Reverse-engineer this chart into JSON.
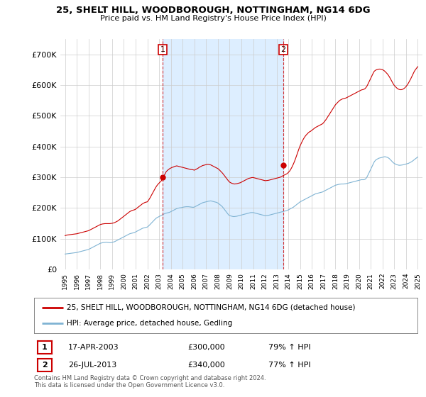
{
  "title": "25, SHELT HILL, WOODBOROUGH, NOTTINGHAM, NG14 6DG",
  "subtitle": "Price paid vs. HM Land Registry's House Price Index (HPI)",
  "legend_line1": "25, SHELT HILL, WOODBOROUGH, NOTTINGHAM, NG14 6DG (detached house)",
  "legend_line2": "HPI: Average price, detached house, Gedling",
  "transaction1_date": "17-APR-2003",
  "transaction1_price": "£300,000",
  "transaction1_hpi": "79% ↑ HPI",
  "transaction2_date": "26-JUL-2013",
  "transaction2_price": "£340,000",
  "transaction2_hpi": "77% ↑ HPI",
  "footnote": "Contains HM Land Registry data © Crown copyright and database right 2024.\nThis data is licensed under the Open Government Licence v3.0.",
  "ylabel_ticks": [
    0,
    100000,
    200000,
    300000,
    400000,
    500000,
    600000,
    700000
  ],
  "ylabel_labels": [
    "£0",
    "£100K",
    "£200K",
    "£300K",
    "£400K",
    "£500K",
    "£600K",
    "£700K"
  ],
  "ylim": [
    0,
    750000
  ],
  "red_line_color": "#cc0000",
  "blue_line_color": "#7fb3d3",
  "vline_color": "#cc0000",
  "shade_color": "#ddeeff",
  "background_color": "#ffffff",
  "grid_color": "#cccccc",
  "transaction1_x": 2003.29,
  "transaction2_x": 2013.57,
  "transaction1_y": 300000,
  "transaction2_y": 340000,
  "xmin": 1994.6,
  "xmax": 2025.4,
  "hpi_years": [
    1995.0,
    1995.1,
    1995.2,
    1995.3,
    1995.4,
    1995.5,
    1995.6,
    1995.7,
    1995.8,
    1995.9,
    1996.0,
    1996.1,
    1996.2,
    1996.3,
    1996.4,
    1996.5,
    1996.6,
    1996.7,
    1996.8,
    1996.9,
    1997.0,
    1997.1,
    1997.2,
    1997.3,
    1997.4,
    1997.5,
    1997.6,
    1997.7,
    1997.8,
    1997.9,
    1998.0,
    1998.1,
    1998.2,
    1998.3,
    1998.4,
    1998.5,
    1998.6,
    1998.7,
    1998.8,
    1998.9,
    1999.0,
    1999.1,
    1999.2,
    1999.3,
    1999.4,
    1999.5,
    1999.6,
    1999.7,
    1999.8,
    1999.9,
    2000.0,
    2000.1,
    2000.2,
    2000.3,
    2000.4,
    2000.5,
    2000.6,
    2000.7,
    2000.8,
    2000.9,
    2001.0,
    2001.1,
    2001.2,
    2001.3,
    2001.4,
    2001.5,
    2001.6,
    2001.7,
    2001.8,
    2001.9,
    2002.0,
    2002.1,
    2002.2,
    2002.3,
    2002.4,
    2002.5,
    2002.6,
    2002.7,
    2002.8,
    2002.9,
    2003.0,
    2003.1,
    2003.2,
    2003.3,
    2003.4,
    2003.5,
    2003.6,
    2003.7,
    2003.8,
    2003.9,
    2004.0,
    2004.1,
    2004.2,
    2004.3,
    2004.4,
    2004.5,
    2004.6,
    2004.7,
    2004.8,
    2004.9,
    2005.0,
    2005.1,
    2005.2,
    2005.3,
    2005.4,
    2005.5,
    2005.6,
    2005.7,
    2005.8,
    2005.9,
    2006.0,
    2006.1,
    2006.2,
    2006.3,
    2006.4,
    2006.5,
    2006.6,
    2006.7,
    2006.8,
    2006.9,
    2007.0,
    2007.1,
    2007.2,
    2007.3,
    2007.4,
    2007.5,
    2007.6,
    2007.7,
    2007.8,
    2007.9,
    2008.0,
    2008.1,
    2008.2,
    2008.3,
    2008.4,
    2008.5,
    2008.6,
    2008.7,
    2008.8,
    2008.9,
    2009.0,
    2009.1,
    2009.2,
    2009.3,
    2009.4,
    2009.5,
    2009.6,
    2009.7,
    2009.8,
    2009.9,
    2010.0,
    2010.1,
    2010.2,
    2010.3,
    2010.4,
    2010.5,
    2010.6,
    2010.7,
    2010.8,
    2010.9,
    2011.0,
    2011.1,
    2011.2,
    2011.3,
    2011.4,
    2011.5,
    2011.6,
    2011.7,
    2011.8,
    2011.9,
    2012.0,
    2012.1,
    2012.2,
    2012.3,
    2012.4,
    2012.5,
    2012.6,
    2012.7,
    2012.8,
    2012.9,
    2013.0,
    2013.1,
    2013.2,
    2013.3,
    2013.4,
    2013.5,
    2013.6,
    2013.7,
    2013.8,
    2013.9,
    2014.0,
    2014.1,
    2014.2,
    2014.3,
    2014.4,
    2014.5,
    2014.6,
    2014.7,
    2014.8,
    2014.9,
    2015.0,
    2015.1,
    2015.2,
    2015.3,
    2015.4,
    2015.5,
    2015.6,
    2015.7,
    2015.8,
    2015.9,
    2016.0,
    2016.1,
    2016.2,
    2016.3,
    2016.4,
    2016.5,
    2016.6,
    2016.7,
    2016.8,
    2016.9,
    2017.0,
    2017.1,
    2017.2,
    2017.3,
    2017.4,
    2017.5,
    2017.6,
    2017.7,
    2017.8,
    2017.9,
    2018.0,
    2018.1,
    2018.2,
    2018.3,
    2018.4,
    2018.5,
    2018.6,
    2018.7,
    2018.8,
    2018.9,
    2019.0,
    2019.1,
    2019.2,
    2019.3,
    2019.4,
    2019.5,
    2019.6,
    2019.7,
    2019.8,
    2019.9,
    2020.0,
    2020.1,
    2020.2,
    2020.3,
    2020.4,
    2020.5,
    2020.6,
    2020.7,
    2020.8,
    2020.9,
    2021.0,
    2021.1,
    2021.2,
    2021.3,
    2021.4,
    2021.5,
    2021.6,
    2021.7,
    2021.8,
    2021.9,
    2022.0,
    2022.1,
    2022.2,
    2022.3,
    2022.4,
    2022.5,
    2022.6,
    2022.7,
    2022.8,
    2022.9,
    2023.0,
    2023.1,
    2023.2,
    2023.3,
    2023.4,
    2023.5,
    2023.6,
    2023.7,
    2023.8,
    2023.9,
    2024.0,
    2024.1,
    2024.2,
    2024.3,
    2024.4,
    2024.5,
    2024.6,
    2024.7,
    2024.8,
    2024.9,
    2025.0
  ],
  "hpi_values": [
    50000,
    50500,
    51000,
    51500,
    52000,
    52500,
    53000,
    53500,
    54000,
    54500,
    55000,
    56000,
    57000,
    58000,
    59000,
    60000,
    61000,
    62000,
    63000,
    64000,
    65000,
    67000,
    69000,
    71000,
    73000,
    75000,
    77000,
    79000,
    81000,
    83000,
    85000,
    86000,
    87000,
    87500,
    88000,
    88500,
    88000,
    87500,
    87000,
    87000,
    88000,
    89000,
    90000,
    92000,
    94000,
    96000,
    98000,
    100000,
    102000,
    104000,
    106000,
    108000,
    110000,
    112000,
    114000,
    116000,
    117000,
    118000,
    119000,
    120000,
    122000,
    124000,
    126000,
    128000,
    130000,
    132000,
    134000,
    135000,
    136000,
    137000,
    138000,
    141000,
    145000,
    149000,
    153000,
    157000,
    161000,
    165000,
    168000,
    170000,
    172000,
    174000,
    176000,
    178000,
    180000,
    182000,
    183000,
    184000,
    185000,
    186000,
    188000,
    190000,
    192000,
    194000,
    196000,
    198000,
    199000,
    200000,
    200500,
    201000,
    202000,
    203000,
    203500,
    204000,
    204000,
    204000,
    203500,
    203000,
    202500,
    202000,
    203000,
    205000,
    207000,
    209000,
    211000,
    213000,
    215000,
    217000,
    218000,
    219000,
    220000,
    221000,
    222000,
    222500,
    223000,
    222000,
    221000,
    220000,
    219000,
    218000,
    216000,
    213000,
    210000,
    207000,
    203000,
    198000,
    193000,
    188000,
    183000,
    178000,
    175000,
    174000,
    173000,
    172000,
    172000,
    172500,
    173000,
    174000,
    175000,
    176000,
    177000,
    178000,
    179000,
    180000,
    181000,
    182000,
    183000,
    184000,
    185000,
    185000,
    185000,
    184000,
    183000,
    182000,
    181000,
    180000,
    179000,
    178000,
    177000,
    176000,
    175000,
    175000,
    175500,
    176000,
    177000,
    178000,
    179000,
    180000,
    181000,
    182000,
    183000,
    184000,
    185000,
    186000,
    187000,
    188000,
    189000,
    190000,
    191000,
    192000,
    194000,
    196000,
    198000,
    200000,
    202000,
    205000,
    208000,
    211000,
    214000,
    217000,
    220000,
    222000,
    224000,
    226000,
    228000,
    230000,
    232000,
    234000,
    236000,
    238000,
    240000,
    242000,
    244000,
    246000,
    247000,
    248000,
    249000,
    250000,
    251000,
    252000,
    254000,
    256000,
    258000,
    260000,
    262000,
    264000,
    266000,
    268000,
    270000,
    272000,
    274000,
    275000,
    276000,
    277000,
    277500,
    278000,
    278000,
    278000,
    278500,
    279000,
    280000,
    281000,
    282000,
    283000,
    284000,
    285000,
    286000,
    287000,
    288000,
    289000,
    290000,
    291000,
    292000,
    292000,
    292000,
    293000,
    296000,
    302000,
    310000,
    318000,
    326000,
    334000,
    342000,
    350000,
    355000,
    358000,
    360000,
    362000,
    363000,
    364000,
    365000,
    366000,
    367000,
    366000,
    365000,
    363000,
    360000,
    356000,
    352000,
    348000,
    345000,
    343000,
    341000,
    340000,
    339000,
    339000,
    339500,
    340000,
    341000,
    342000,
    343000,
    344000,
    345000,
    347000,
    349000,
    351000,
    354000,
    357000,
    360000,
    363000,
    366000
  ],
  "red_years": [
    1995.0,
    1995.1,
    1995.2,
    1995.3,
    1995.4,
    1995.5,
    1995.6,
    1995.7,
    1995.8,
    1995.9,
    1996.0,
    1996.1,
    1996.2,
    1996.3,
    1996.4,
    1996.5,
    1996.6,
    1996.7,
    1996.8,
    1996.9,
    1997.0,
    1997.1,
    1997.2,
    1997.3,
    1997.4,
    1997.5,
    1997.6,
    1997.7,
    1997.8,
    1997.9,
    1998.0,
    1998.1,
    1998.2,
    1998.3,
    1998.4,
    1998.5,
    1998.6,
    1998.7,
    1998.8,
    1998.9,
    1999.0,
    1999.1,
    1999.2,
    1999.3,
    1999.4,
    1999.5,
    1999.6,
    1999.7,
    1999.8,
    1999.9,
    2000.0,
    2000.1,
    2000.2,
    2000.3,
    2000.4,
    2000.5,
    2000.6,
    2000.7,
    2000.8,
    2000.9,
    2001.0,
    2001.1,
    2001.2,
    2001.3,
    2001.4,
    2001.5,
    2001.6,
    2001.7,
    2001.8,
    2001.9,
    2002.0,
    2002.1,
    2002.2,
    2002.3,
    2002.4,
    2002.5,
    2002.6,
    2002.7,
    2002.8,
    2002.9,
    2003.0,
    2003.1,
    2003.2,
    2003.29,
    2003.4,
    2003.5,
    2003.6,
    2003.7,
    2003.8,
    2003.9,
    2004.0,
    2004.1,
    2004.2,
    2004.3,
    2004.4,
    2004.5,
    2004.6,
    2004.7,
    2004.8,
    2004.9,
    2005.0,
    2005.1,
    2005.2,
    2005.3,
    2005.4,
    2005.5,
    2005.6,
    2005.7,
    2005.8,
    2005.9,
    2006.0,
    2006.1,
    2006.2,
    2006.3,
    2006.4,
    2006.5,
    2006.6,
    2006.7,
    2006.8,
    2006.9,
    2007.0,
    2007.1,
    2007.2,
    2007.3,
    2007.4,
    2007.5,
    2007.6,
    2007.7,
    2007.8,
    2007.9,
    2008.0,
    2008.1,
    2008.2,
    2008.3,
    2008.4,
    2008.5,
    2008.6,
    2008.7,
    2008.8,
    2008.9,
    2009.0,
    2009.1,
    2009.2,
    2009.3,
    2009.4,
    2009.5,
    2009.6,
    2009.7,
    2009.8,
    2009.9,
    2010.0,
    2010.1,
    2010.2,
    2010.3,
    2010.4,
    2010.5,
    2010.6,
    2010.7,
    2010.8,
    2010.9,
    2011.0,
    2011.1,
    2011.2,
    2011.3,
    2011.4,
    2011.5,
    2011.6,
    2011.7,
    2011.8,
    2011.9,
    2012.0,
    2012.1,
    2012.2,
    2012.3,
    2012.4,
    2012.5,
    2012.6,
    2012.7,
    2012.8,
    2012.9,
    2013.0,
    2013.1,
    2013.2,
    2013.3,
    2013.4,
    2013.5,
    2013.57,
    2013.7,
    2013.8,
    2013.9,
    2014.0,
    2014.1,
    2014.2,
    2014.3,
    2014.4,
    2014.5,
    2014.6,
    2014.7,
    2014.8,
    2014.9,
    2015.0,
    2015.1,
    2015.2,
    2015.3,
    2015.4,
    2015.5,
    2015.6,
    2015.7,
    2015.8,
    2015.9,
    2016.0,
    2016.1,
    2016.2,
    2016.3,
    2016.4,
    2016.5,
    2016.6,
    2016.7,
    2016.8,
    2016.9,
    2017.0,
    2017.1,
    2017.2,
    2017.3,
    2017.4,
    2017.5,
    2017.6,
    2017.7,
    2017.8,
    2017.9,
    2018.0,
    2018.1,
    2018.2,
    2018.3,
    2018.4,
    2018.5,
    2018.6,
    2018.7,
    2018.8,
    2018.9,
    2019.0,
    2019.1,
    2019.2,
    2019.3,
    2019.4,
    2019.5,
    2019.6,
    2019.7,
    2019.8,
    2019.9,
    2020.0,
    2020.1,
    2020.2,
    2020.3,
    2020.4,
    2020.5,
    2020.6,
    2020.7,
    2020.8,
    2020.9,
    2021.0,
    2021.1,
    2021.2,
    2021.3,
    2021.4,
    2021.5,
    2021.6,
    2021.7,
    2021.8,
    2021.9,
    2022.0,
    2022.1,
    2022.2,
    2022.3,
    2022.4,
    2022.5,
    2022.6,
    2022.7,
    2022.8,
    2022.9,
    2023.0,
    2023.1,
    2023.2,
    2023.3,
    2023.4,
    2023.5,
    2023.6,
    2023.7,
    2023.8,
    2023.9,
    2024.0,
    2024.1,
    2024.2,
    2024.3,
    2024.4,
    2024.5,
    2024.6,
    2024.7,
    2024.8,
    2024.9,
    2025.0
  ],
  "red_values": [
    110000,
    111000,
    112000,
    112500,
    113000,
    113500,
    114000,
    114500,
    115000,
    115500,
    116000,
    117000,
    118000,
    119000,
    120000,
    121000,
    122000,
    123000,
    124000,
    125000,
    126000,
    128000,
    130000,
    132000,
    134000,
    136000,
    138000,
    140000,
    142000,
    144000,
    146000,
    147000,
    148000,
    148500,
    149000,
    149000,
    149000,
    149000,
    149000,
    149500,
    150000,
    151000,
    152000,
    154000,
    156000,
    158000,
    161000,
    164000,
    167000,
    170000,
    173000,
    176000,
    179000,
    182000,
    185000,
    188000,
    190000,
    192000,
    193000,
    194000,
    196000,
    199000,
    202000,
    205000,
    208000,
    211000,
    214000,
    216000,
    218000,
    219000,
    220000,
    225000,
    231000,
    238000,
    245000,
    252000,
    259000,
    266000,
    272000,
    277000,
    281000,
    285000,
    289000,
    300000,
    305000,
    310000,
    318000,
    322000,
    325000,
    328000,
    330000,
    332000,
    333000,
    335000,
    336000,
    337000,
    336000,
    335000,
    334000,
    333000,
    332000,
    331000,
    330000,
    329000,
    328000,
    327000,
    326000,
    325000,
    325000,
    324000,
    323000,
    325000,
    327000,
    329000,
    332000,
    334000,
    336000,
    338000,
    339000,
    340000,
    341000,
    342000,
    342000,
    341000,
    340000,
    338000,
    336000,
    334000,
    332000,
    330000,
    328000,
    325000,
    321000,
    317000,
    313000,
    308000,
    303000,
    298000,
    293000,
    288000,
    284000,
    282000,
    280000,
    279000,
    278000,
    278500,
    279000,
    280000,
    281000,
    282000,
    284000,
    286000,
    288000,
    290000,
    292000,
    294000,
    296000,
    297000,
    298000,
    299000,
    299000,
    298000,
    297000,
    296000,
    295000,
    294000,
    293000,
    292000,
    291000,
    290000,
    289000,
    289000,
    289500,
    290000,
    291000,
    292000,
    293000,
    294000,
    295000,
    296000,
    297000,
    298000,
    299000,
    300000,
    302000,
    304000,
    306000,
    308000,
    310000,
    312000,
    316000,
    320000,
    326000,
    333000,
    341000,
    350000,
    360000,
    371000,
    382000,
    393000,
    403000,
    411000,
    419000,
    426000,
    432000,
    437000,
    441000,
    445000,
    448000,
    450000,
    453000,
    456000,
    459000,
    462000,
    464000,
    466000,
    468000,
    470000,
    472000,
    474000,
    478000,
    483000,
    488000,
    494000,
    500000,
    506000,
    512000,
    518000,
    524000,
    530000,
    536000,
    540000,
    544000,
    548000,
    551000,
    553000,
    555000,
    556000,
    557000,
    558000,
    560000,
    562000,
    564000,
    566000,
    568000,
    570000,
    572000,
    574000,
    576000,
    578000,
    580000,
    582000,
    584000,
    585000,
    586000,
    588000,
    592000,
    598000,
    606000,
    614000,
    622000,
    630000,
    638000,
    645000,
    648000,
    650000,
    651000,
    652000,
    652000,
    651000,
    650000,
    648000,
    645000,
    641000,
    637000,
    632000,
    626000,
    619000,
    612000,
    605000,
    599000,
    595000,
    591000,
    588000,
    586000,
    585000,
    585000,
    586000,
    588000,
    591000,
    595000,
    600000,
    606000,
    613000,
    620000,
    628000,
    636000,
    644000,
    650000,
    655000,
    660000
  ]
}
